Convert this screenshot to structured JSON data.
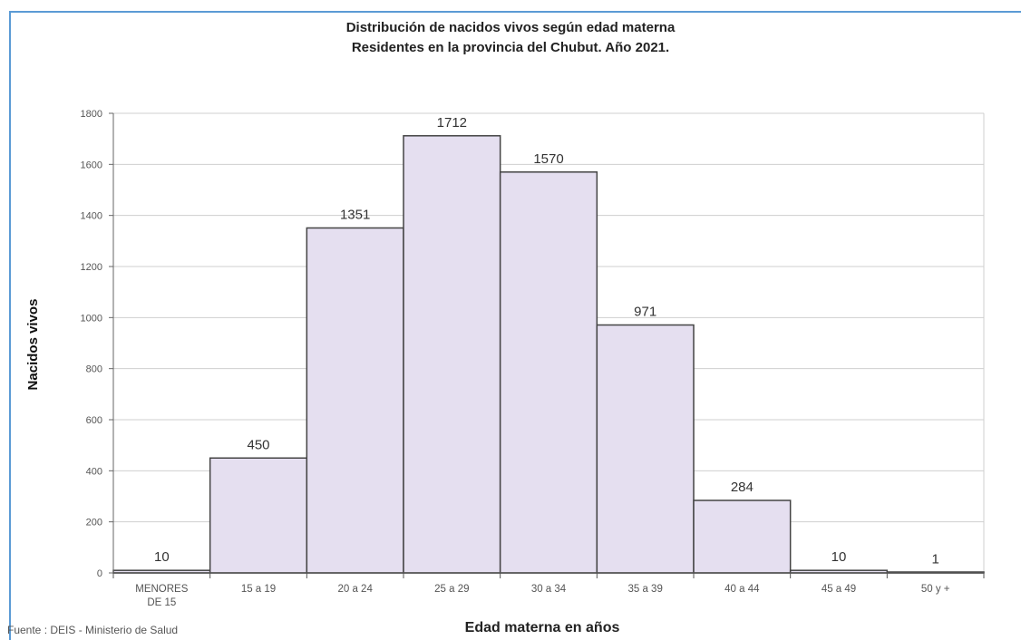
{
  "chart_data": {
    "type": "bar",
    "title": "Distribución de nacidos vivos según edad materna",
    "subtitle": "Residentes en la provincia del Chubut. Año 2021.",
    "xlabel": "Edad materna en años",
    "ylabel": "Nacidos vivos",
    "categories": [
      "MENORES DE 15",
      "15 a 19",
      "20 a 24",
      "25 a 29",
      "30 a 34",
      "35 a 39",
      "40 a 44",
      "45 a 49",
      "50 y +"
    ],
    "values": [
      10,
      450,
      1351,
      1712,
      1570,
      971,
      284,
      10,
      1
    ],
    "ylim": [
      0,
      1800
    ],
    "yticks": [
      0,
      200,
      400,
      600,
      800,
      1000,
      1200,
      1400,
      1600,
      1800
    ],
    "grid": true,
    "bar_color": "#e5dff0",
    "bar_edge_color": "#444444",
    "source": "Fuente : DEIS - Ministerio de Salud"
  }
}
